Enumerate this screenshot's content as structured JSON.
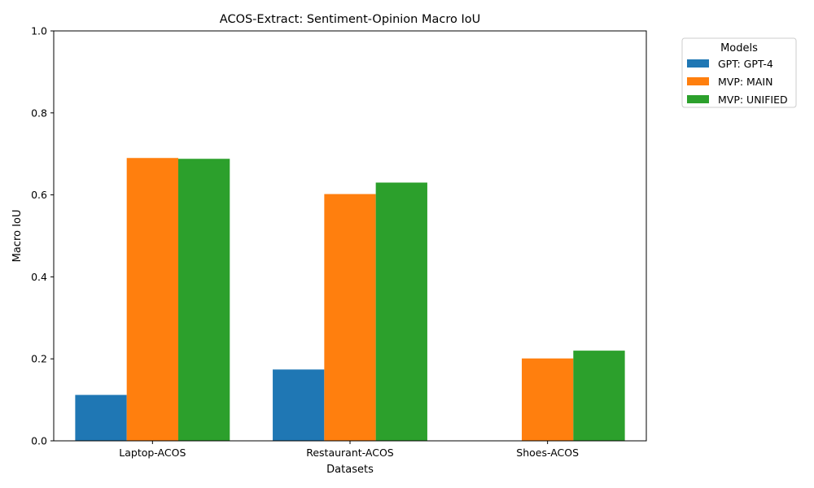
{
  "chart_data": {
    "type": "bar",
    "title": "ACOS-Extract: Sentiment-Opinion Macro IoU",
    "xlabel": "Datasets",
    "ylabel": "Macro IoU",
    "ylim": [
      0,
      1.0
    ],
    "yticks": [
      "0.0",
      "0.2",
      "0.4",
      "0.6",
      "0.8",
      "1.0"
    ],
    "categories": [
      "Laptop-ACOS",
      "Restaurant-ACOS",
      "Shoes-ACOS"
    ],
    "legend": {
      "title": "Models",
      "placement": "outside-top-right"
    },
    "series": [
      {
        "name": "GPT: GPT-4",
        "color": "#1f77b4",
        "values": [
          0.112,
          0.174,
          0.0
        ]
      },
      {
        "name": "MVP: MAIN",
        "color": "#ff7f0e",
        "values": [
          0.69,
          0.602,
          0.201
        ]
      },
      {
        "name": "MVP: UNIFIED",
        "color": "#2ca02c",
        "values": [
          0.688,
          0.63,
          0.22
        ]
      }
    ]
  }
}
